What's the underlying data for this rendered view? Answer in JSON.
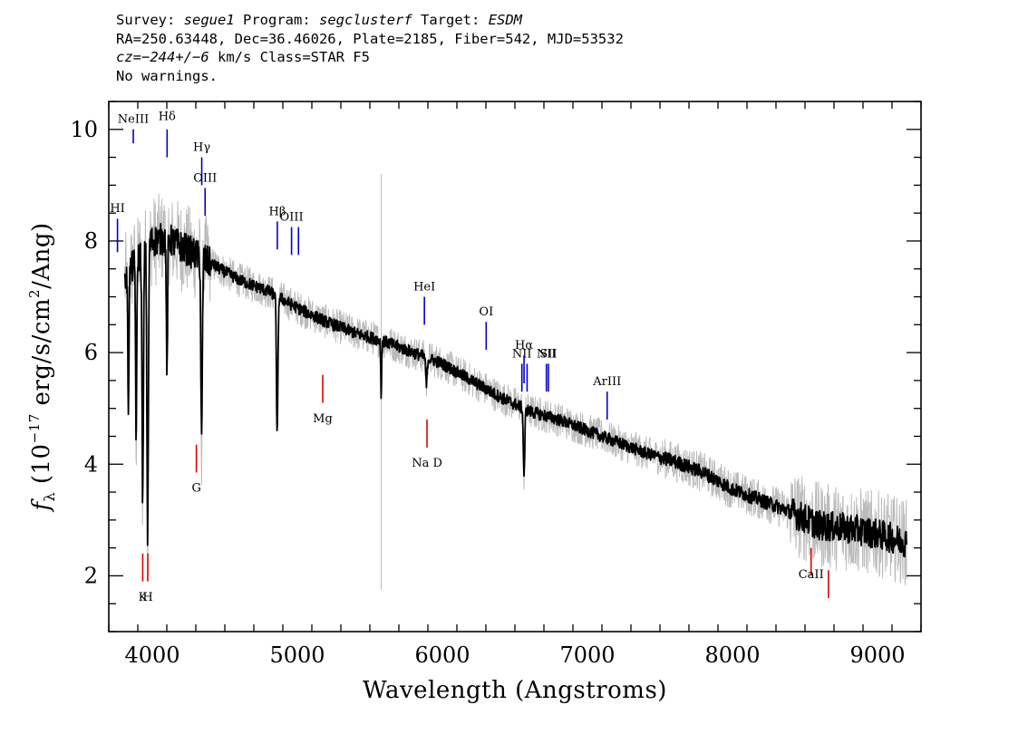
{
  "header": {
    "survey_label": "Survey:",
    "survey_value": "segue1",
    "program_label": "Program:",
    "program_value": "segclusterf",
    "target_label": "Target:",
    "target_value": "ESDM",
    "line2": "RA=250.63448, Dec=36.46026, Plate=2185, Fiber=542, MJD=53532",
    "cz_label": "cz=",
    "cz_value": "−244+/−6",
    "cz_unit": " km/s",
    "class_text": " Class=STAR F5",
    "warnings": "No warnings."
  },
  "colors": {
    "flux": "#000000",
    "error_band": "#bbbbbb",
    "emission_line": "#0000cc",
    "absorption_line": "#dd0000"
  },
  "chart_data": {
    "type": "line",
    "xlabel": "Wavelength (Angstroms)",
    "ylabel_parts": [
      "f",
      "λ",
      " (10",
      "−17",
      " erg/s/cm",
      "2",
      "/Ang)"
    ],
    "xlim": [
      3700,
      9300
    ],
    "ylim": [
      1,
      10.5
    ],
    "x_ticks": [
      4000,
      5000,
      6000,
      7000,
      8000,
      9000
    ],
    "y_ticks": [
      2,
      4,
      6,
      8,
      10
    ],
    "grid": false,
    "continuum": [
      {
        "x": 3810,
        "y": 7.3
      },
      {
        "x": 3900,
        "y": 7.7
      },
      {
        "x": 4000,
        "y": 8.0
      },
      {
        "x": 4100,
        "y": 8.05
      },
      {
        "x": 4200,
        "y": 7.9
      },
      {
        "x": 4400,
        "y": 7.6
      },
      {
        "x": 4600,
        "y": 7.3
      },
      {
        "x": 4800,
        "y": 7.1
      },
      {
        "x": 5000,
        "y": 6.8
      },
      {
        "x": 5200,
        "y": 6.55
      },
      {
        "x": 5400,
        "y": 6.35
      },
      {
        "x": 5600,
        "y": 6.2
      },
      {
        "x": 5800,
        "y": 6.0
      },
      {
        "x": 6000,
        "y": 5.8
      },
      {
        "x": 6200,
        "y": 5.5
      },
      {
        "x": 6400,
        "y": 5.2
      },
      {
        "x": 6600,
        "y": 4.95
      },
      {
        "x": 6800,
        "y": 4.8
      },
      {
        "x": 7000,
        "y": 4.6
      },
      {
        "x": 7200,
        "y": 4.4
      },
      {
        "x": 7400,
        "y": 4.2
      },
      {
        "x": 7600,
        "y": 4.05
      },
      {
        "x": 7800,
        "y": 3.85
      },
      {
        "x": 8000,
        "y": 3.55
      },
      {
        "x": 8200,
        "y": 3.35
      },
      {
        "x": 8400,
        "y": 3.15
      },
      {
        "x": 8600,
        "y": 2.9
      },
      {
        "x": 8800,
        "y": 2.85
      },
      {
        "x": 9000,
        "y": 2.75
      },
      {
        "x": 9200,
        "y": 2.6
      }
    ],
    "absorption_features": [
      {
        "x": 3835,
        "depth": 2.3,
        "width": 4
      },
      {
        "x": 3889,
        "depth": 3.2,
        "width": 4
      },
      {
        "x": 3934,
        "depth": 4.4,
        "width": 5
      },
      {
        "x": 3968,
        "depth": 5.2,
        "width": 5
      },
      {
        "x": 4101,
        "depth": 2.5,
        "width": 4
      },
      {
        "x": 4340,
        "depth": 3.3,
        "width": 5
      },
      {
        "x": 4861,
        "depth": 2.5,
        "width": 5
      },
      {
        "x": 5578,
        "depth": 1.0,
        "width": 3
      },
      {
        "x": 5890,
        "depth": 0.5,
        "width": 5
      },
      {
        "x": 6563,
        "depth": 1.2,
        "width": 5
      }
    ],
    "sky_spike": {
      "x": 5578,
      "low": 1.75,
      "high": 9.2
    },
    "emission_lines": [
      {
        "label": "HI",
        "x": 3760,
        "y1": 7.8,
        "y2": 8.4,
        "label_y": 8.45
      },
      {
        "label": "NeIII",
        "x": 3869,
        "y1": 9.75,
        "y2": 10.0,
        "label_y": 10.05
      },
      {
        "label": "Hδ",
        "x": 4102,
        "y1": 9.5,
        "y2": 10.0,
        "label_y": 10.1
      },
      {
        "label": "Hγ",
        "x": 4341,
        "y1": 9.0,
        "y2": 9.5,
        "label_y": 9.55
      },
      {
        "label": "OIII",
        "x": 4364,
        "y1": 8.45,
        "y2": 8.95,
        "label_y": 9.0
      },
      {
        "label": "Hβ",
        "x": 4862,
        "y1": 7.85,
        "y2": 8.35,
        "label_y": 8.4
      },
      {
        "label": "OIII",
        "x": 4960,
        "y1": 7.75,
        "y2": 8.25,
        "label_y": 8.3
      },
      {
        "label": "",
        "x": 5008,
        "y1": 7.75,
        "y2": 8.25,
        "label_y": 8.3
      },
      {
        "label": "HeI",
        "x": 5876,
        "y1": 6.5,
        "y2": 7.0,
        "label_y": 7.05
      },
      {
        "label": "OI",
        "x": 6302,
        "y1": 6.05,
        "y2": 6.55,
        "label_y": 6.6
      },
      {
        "label": "NII",
        "x": 6548,
        "y1": 5.3,
        "y2": 5.8,
        "label_y": 5.85
      },
      {
        "label": "Hα",
        "x": 6563,
        "y1": 5.45,
        "y2": 5.95,
        "label_y": 6.0
      },
      {
        "label": "",
        "x": 6584,
        "y1": 5.3,
        "y2": 5.8,
        "label_y": 5.85
      },
      {
        "label": "NII",
        "x": 6717,
        "y1": 5.3,
        "y2": 5.8,
        "label_y": 5.85
      },
      {
        "label": "SII",
        "x": 6731,
        "y1": 5.3,
        "y2": 5.8,
        "label_y": 5.85
      },
      {
        "label": "ArIII",
        "x": 7136,
        "y1": 4.8,
        "y2": 5.3,
        "label_y": 5.35
      }
    ],
    "absorption_lines": [
      {
        "label": "K",
        "x": 3934,
        "y1": 1.9,
        "y2": 2.4,
        "label_y": 1.75
      },
      {
        "label": "H",
        "x": 3969,
        "y1": 1.9,
        "y2": 2.4,
        "label_y": 1.75
      },
      {
        "label": "G",
        "x": 4304,
        "y1": 3.85,
        "y2": 4.35,
        "label_y": 3.7
      },
      {
        "label": "Mg",
        "x": 5175,
        "y1": 5.1,
        "y2": 5.6,
        "label_y": 4.95
      },
      {
        "label": "Na D",
        "x": 5894,
        "y1": 4.3,
        "y2": 4.8,
        "label_y": 4.15
      },
      {
        "label": "CaII",
        "x": 8542,
        "y1": 2.0,
        "y2": 2.5,
        "label_y": 2.15
      },
      {
        "label": "",
        "x": 8662,
        "y1": 1.6,
        "y2": 2.1,
        "label_y": 1.5
      }
    ]
  }
}
